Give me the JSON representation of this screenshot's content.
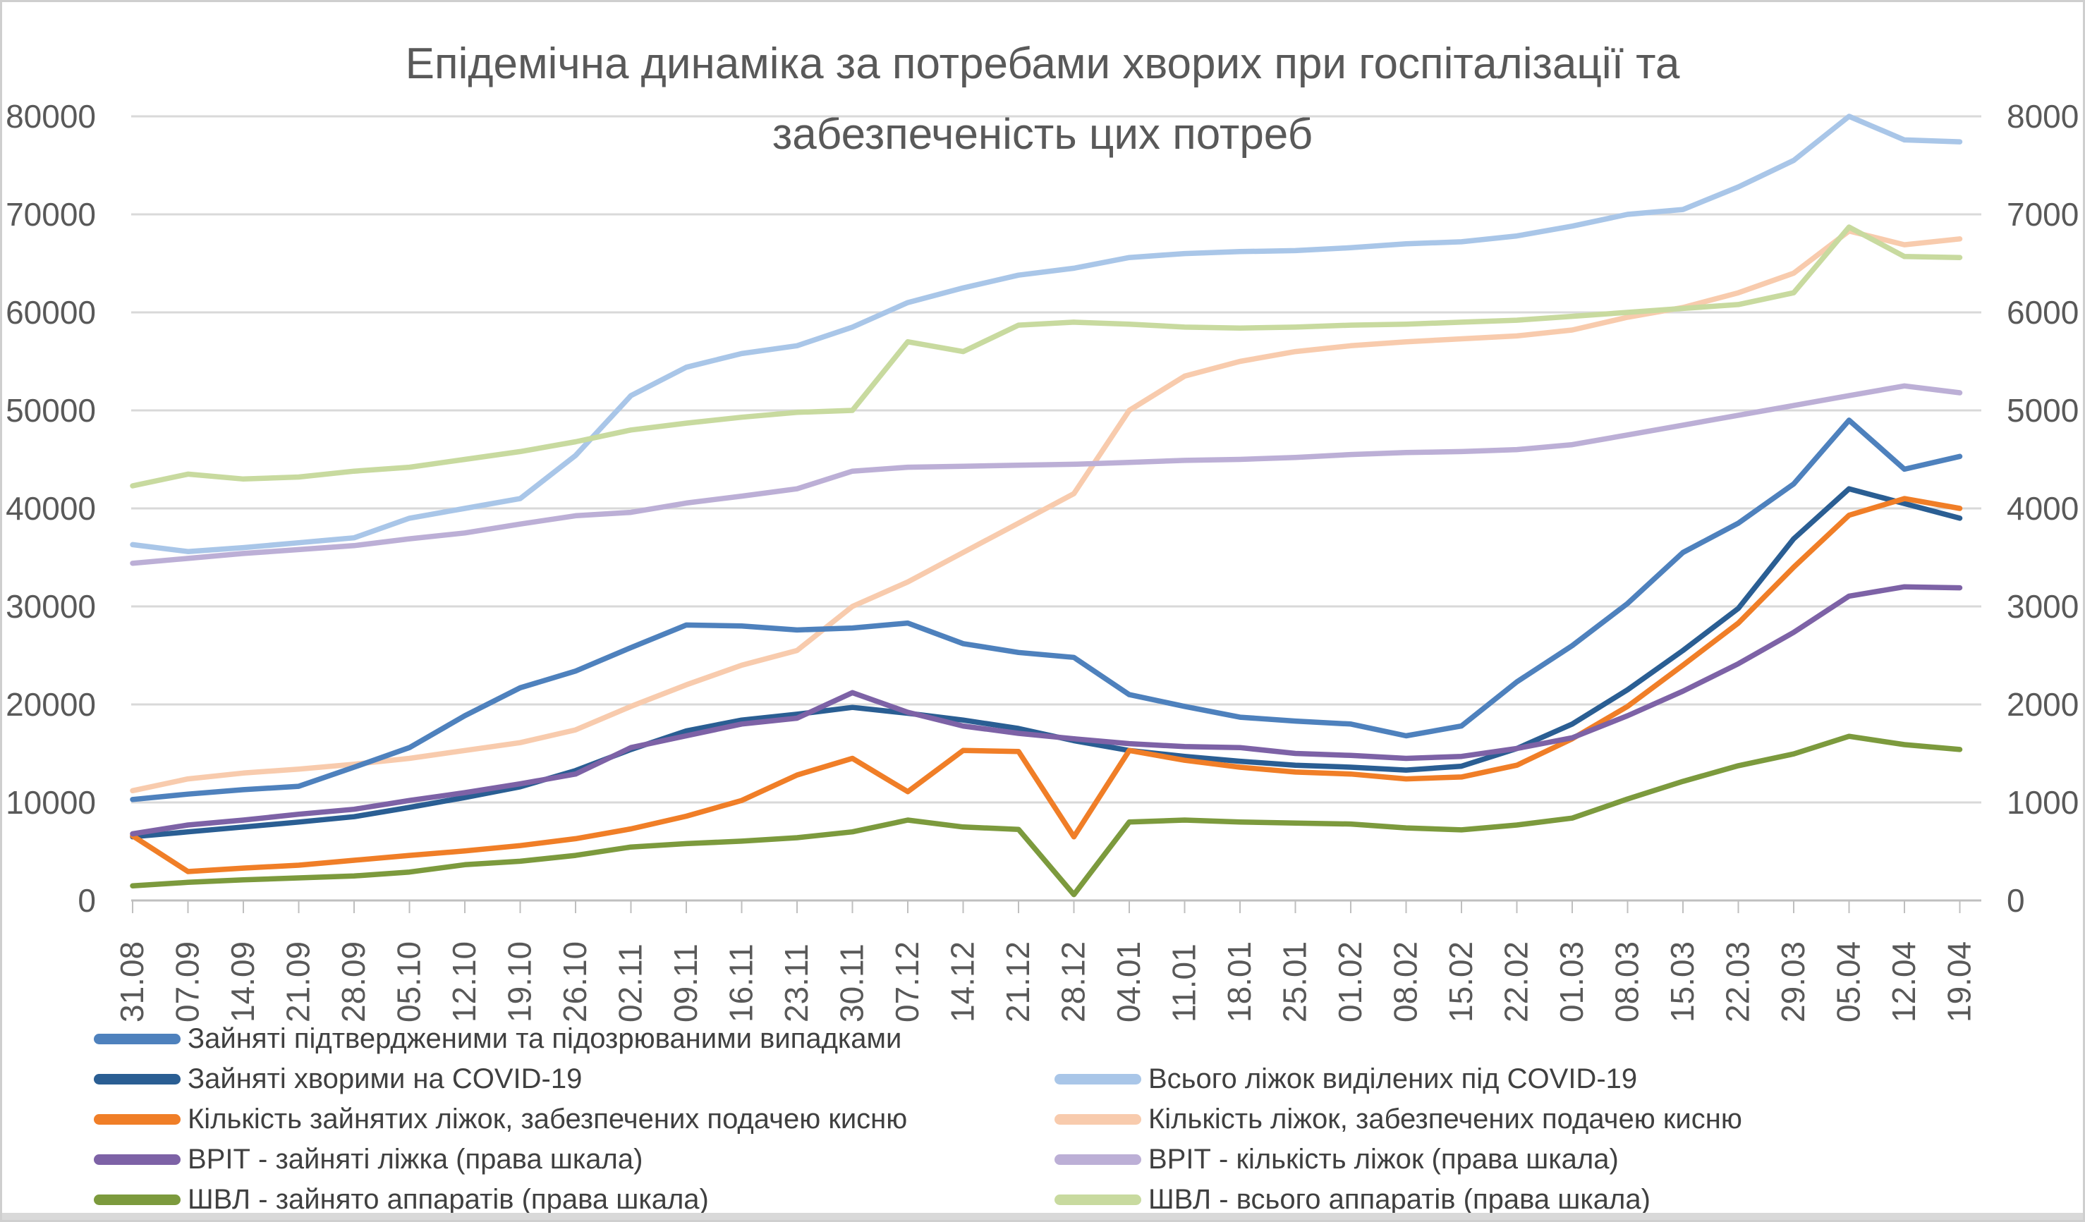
{
  "title": {
    "line1": "Епідемічна динаміка за потребами хворих при госпіталізації та",
    "line2": "забезпеченість цих потреб"
  },
  "chart_data": {
    "type": "line",
    "title": "Епідемічна динаміка за потребами хворих при госпіталізації та забезпеченість цих потреб",
    "grid": true,
    "legend_position": "bottom",
    "x_labels": [
      "31.08",
      "07.09",
      "14.09",
      "21.09",
      "28.09",
      "05.10",
      "12.10",
      "19.10",
      "26.10",
      "02.11",
      "09.11",
      "16.11",
      "23.11",
      "30.11",
      "07.12",
      "14.12",
      "21.12",
      "28.12",
      "04.01",
      "11.01",
      "18.01",
      "25.01",
      "01.02",
      "08.02",
      "15.02",
      "22.02",
      "01.03",
      "08.03",
      "15.03",
      "22.03",
      "29.03",
      "05.04",
      "12.04",
      "19.04"
    ],
    "axes": {
      "left": {
        "min": 0,
        "max": 80000,
        "ticks": [
          80000,
          70000,
          60000,
          50000,
          40000,
          30000,
          20000,
          10000,
          0
        ]
      },
      "right": {
        "min": 0,
        "max": 8000,
        "ticks": [
          8000,
          7000,
          6000,
          5000,
          4000,
          3000,
          2000,
          1000,
          0
        ]
      }
    },
    "series": [
      {
        "name": "Всього ліжок виділених під COVID-19",
        "axis": "left",
        "color": "#A9C6E8",
        "values": [
          36300,
          35600,
          36000,
          36500,
          37000,
          39000,
          40000,
          41000,
          45400,
          51500,
          54400,
          55800,
          56600,
          58500,
          61000,
          62500,
          63800,
          64500,
          65600,
          66000,
          66200,
          66300,
          66600,
          67000,
          67200,
          67800,
          68800,
          70000,
          70500,
          72800,
          75500,
          80000,
          77600,
          77400
        ]
      },
      {
        "name": "Кількість ліжок, забезпечених подачею кисню",
        "axis": "left",
        "color": "#F8CBAD",
        "values": [
          11200,
          12400,
          13000,
          13400,
          13900,
          14500,
          15300,
          16100,
          17400,
          19800,
          22000,
          24000,
          25500,
          30000,
          32500,
          35500,
          38500,
          41500,
          50000,
          53500,
          55000,
          56000,
          56600,
          57000,
          57300,
          57600,
          58200,
          59500,
          60500,
          62000,
          64000,
          68300,
          66900,
          67500
        ]
      },
      {
        "name": "ВРІТ - кількість ліжок (права шкала)",
        "axis": "right",
        "color": "#BCAFD6",
        "values": [
          3440,
          3490,
          3540,
          3580,
          3620,
          3690,
          3750,
          3840,
          3925,
          3960,
          4055,
          4125,
          4200,
          4380,
          4420,
          4430,
          4440,
          4450,
          4470,
          4490,
          4500,
          4520,
          4550,
          4570,
          4580,
          4600,
          4650,
          4750,
          4850,
          4950,
          5050,
          5150,
          5250,
          5180
        ]
      },
      {
        "name": "ШВЛ - всього аппаратів (права шкала)",
        "axis": "right",
        "color": "#C8DA9F",
        "values": [
          4230,
          4350,
          4300,
          4320,
          4380,
          4420,
          4500,
          4580,
          4680,
          4800,
          4870,
          4930,
          4980,
          5000,
          5700,
          5600,
          5870,
          5900,
          5880,
          5850,
          5840,
          5850,
          5870,
          5880,
          5900,
          5920,
          5960,
          6000,
          6040,
          6080,
          6200,
          6870,
          6570,
          6560
        ]
      },
      {
        "name": "Зайняті підтвердженими та підозрюваними випадками",
        "axis": "left",
        "color": "#4E81BD",
        "values": [
          10300,
          10850,
          11300,
          11650,
          13600,
          15600,
          18850,
          21700,
          23400,
          25800,
          28100,
          28000,
          27600,
          27800,
          28300,
          26200,
          25300,
          24800,
          21000,
          19800,
          18700,
          18300,
          18000,
          16800,
          17800,
          22300,
          26000,
          30300,
          35500,
          38500,
          42500,
          49000,
          44000,
          45300
        ]
      },
      {
        "name": "Зайняті хворими на COVID-19",
        "axis": "left",
        "color": "#2A5E93",
        "values": [
          6500,
          7000,
          7500,
          8000,
          8550,
          9500,
          10500,
          11600,
          13250,
          15400,
          17300,
          18400,
          19000,
          19700,
          19100,
          18400,
          17550,
          16300,
          15300,
          14700,
          14200,
          13800,
          13600,
          13300,
          13700,
          15500,
          18000,
          21500,
          25500,
          29800,
          36900,
          42000,
          40500,
          39000
        ]
      },
      {
        "name": "Кількість зайнятих ліжок, забезпечених подачею кисню",
        "axis": "left",
        "color": "#F07E27",
        "values": [
          6600,
          2950,
          3300,
          3600,
          4100,
          4600,
          5050,
          5600,
          6300,
          7300,
          8600,
          10200,
          12800,
          14500,
          11100,
          15300,
          15200,
          6500,
          15300,
          14300,
          13600,
          13100,
          12900,
          12400,
          12600,
          13800,
          16500,
          19800,
          24000,
          28300,
          34000,
          39300,
          41000,
          40000
        ]
      },
      {
        "name": "ВРІТ - зайняті ліжка (права шкала)",
        "axis": "right",
        "color": "#7D62A6",
        "values": [
          680,
          770,
          820,
          880,
          930,
          1020,
          1100,
          1190,
          1290,
          1560,
          1680,
          1800,
          1860,
          2120,
          1920,
          1780,
          1705,
          1650,
          1600,
          1570,
          1560,
          1500,
          1480,
          1450,
          1470,
          1550,
          1660,
          1885,
          2135,
          2415,
          2735,
          3105,
          3200,
          3190
        ]
      },
      {
        "name": "ШВЛ - зайнято аппаратів (права шкала)",
        "axis": "right",
        "color": "#7C9A3D",
        "values": [
          150,
          185,
          210,
          230,
          250,
          290,
          365,
          400,
          460,
          545,
          580,
          605,
          640,
          700,
          820,
          750,
          725,
          60,
          800,
          820,
          800,
          790,
          780,
          740,
          720,
          770,
          840,
          1035,
          1215,
          1375,
          1495,
          1675,
          1590,
          1540
        ]
      }
    ]
  },
  "legend": {
    "rows": [
      {
        "left": {
          "label": "Зайняті підтвердженими та підозрюваними випадками",
          "color": "#4E81BD"
        },
        "right": null
      },
      {
        "left": {
          "label": "Зайняті хворими на COVID-19",
          "color": "#2A5E93"
        },
        "right": {
          "label": "Всього ліжок виділених під COVID-19",
          "color": "#A9C6E8"
        }
      },
      {
        "left": {
          "label": "Кількість зайнятих ліжок, забезпечених подачею кисню",
          "color": "#F07E27"
        },
        "right": {
          "label": "Кількість ліжок, забезпечених подачею кисню",
          "color": "#F8CBAD"
        }
      },
      {
        "left": {
          "label": "ВРІТ - зайняті ліжка (права шкала)",
          "color": "#7D62A6"
        },
        "right": {
          "label": "ВРІТ - кількість ліжок (права шкала)",
          "color": "#BCAFD6"
        }
      },
      {
        "left": {
          "label": "ШВЛ - зайнято аппаратів (права шкала)",
          "color": "#7C9A3D"
        },
        "right": {
          "label": "ШВЛ - всього аппаратів (права шкала)",
          "color": "#C8DA9F"
        }
      }
    ]
  }
}
